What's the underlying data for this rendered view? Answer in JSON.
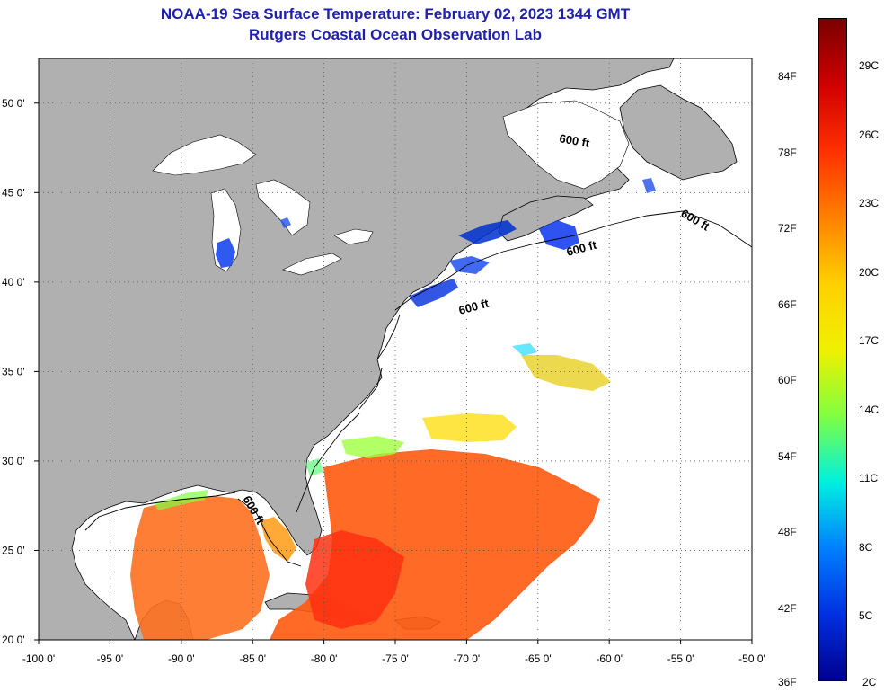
{
  "header": {
    "title": "NOAA-19 Sea Surface Temperature:  February 02, 2023 1344 GMT",
    "subtitle": "Rutgers Coastal Ocean Observation Lab"
  },
  "map": {
    "lon_range": [
      -100,
      -50
    ],
    "lat_range": [
      20,
      52.5
    ],
    "lon_ticks": [
      "-100 0'",
      "-95 0'",
      "-90 0'",
      "-85 0'",
      "-80 0'",
      "-75 0'",
      "-70 0'",
      "-65 0'",
      "-60 0'",
      "-55 0'",
      "-50 0'"
    ],
    "lat_ticks": [
      "20 0'",
      "25 0'",
      "30 0'",
      "35 0'",
      "40 0'",
      "45 0'",
      "50 0'"
    ],
    "contour_label": "600 ft",
    "land_color": "#b0b0b0",
    "ocean_nodata_color": "#ffffff"
  },
  "colorbar": {
    "fahrenheit_labels": [
      "84F",
      "78F",
      "72F",
      "66F",
      "60F",
      "54F",
      "48F",
      "42F",
      "36F"
    ],
    "celsius_labels": [
      "29C",
      "26C",
      "23C",
      "20C",
      "17C",
      "14C",
      "11C",
      "8C",
      "5C",
      "2C"
    ],
    "colors": [
      "#7a0000",
      "#d00000",
      "#ff3000",
      "#ff8000",
      "#ffd000",
      "#f0f000",
      "#80ff40",
      "#00f0e0",
      "#0080ff",
      "#0030e0",
      "#000090"
    ]
  }
}
